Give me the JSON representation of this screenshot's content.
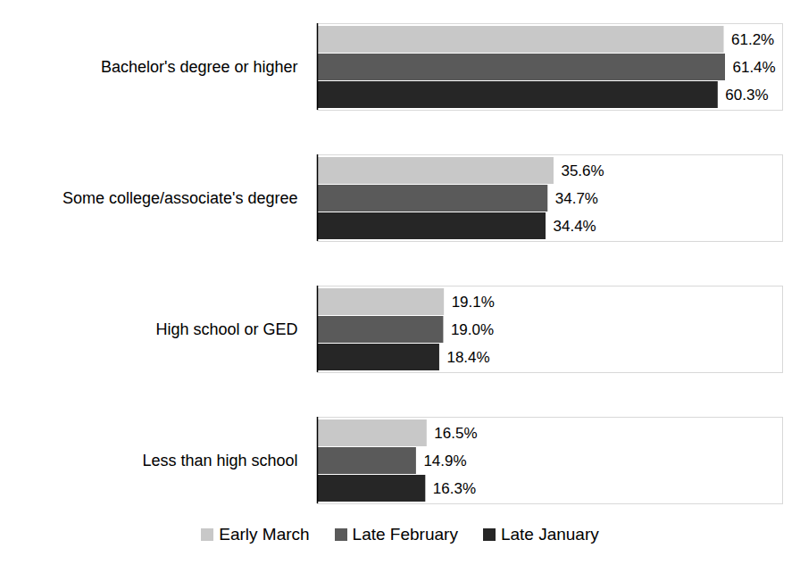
{
  "chart_data": {
    "type": "bar",
    "orientation": "horizontal",
    "categories": [
      "Bachelor's degree or higher",
      "Some college/associate's degree",
      "High school or GED",
      "Less than high school"
    ],
    "series": [
      {
        "name": "Early March",
        "color": "#c8c8c8",
        "values": [
          61.2,
          35.6,
          19.1,
          16.5
        ],
        "value_labels": [
          "61.2%",
          "35.6%",
          "19.1%",
          "16.5%"
        ]
      },
      {
        "name": "Late February",
        "color": "#5a5a5a",
        "values": [
          61.4,
          34.7,
          19.0,
          14.9
        ],
        "value_labels": [
          "61.4%",
          "34.7%",
          "19.0%",
          "14.9%"
        ]
      },
      {
        "name": "Late January",
        "color": "#262626",
        "values": [
          60.3,
          34.4,
          18.4,
          16.3
        ],
        "value_labels": [
          "60.3%",
          "34.4%",
          "18.4%",
          "16.3%"
        ]
      }
    ],
    "xlim": [
      0,
      70
    ],
    "xticks": [],
    "data_labels": true,
    "tick_labels": "y",
    "legend": "bottom",
    "grid": false
  }
}
